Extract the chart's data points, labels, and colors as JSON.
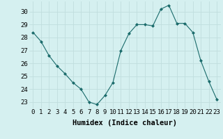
{
  "x": [
    0,
    1,
    2,
    3,
    4,
    5,
    6,
    7,
    8,
    9,
    10,
    11,
    12,
    13,
    14,
    15,
    16,
    17,
    18,
    19,
    20,
    21,
    22,
    23
  ],
  "y": [
    28.4,
    27.7,
    26.6,
    25.8,
    25.2,
    24.5,
    24.0,
    23.0,
    22.8,
    23.5,
    24.5,
    27.0,
    28.3,
    29.0,
    29.0,
    28.9,
    30.2,
    30.5,
    29.1,
    29.1,
    28.4,
    26.2,
    24.6,
    23.2
  ],
  "line_color": "#1a6b6b",
  "marker": "D",
  "marker_size": 2.0,
  "bg_color": "#d5f0f0",
  "grid_color": "#c0dede",
  "xlabel": "Humidex (Indice chaleur)",
  "ylim": [
    22.5,
    30.8
  ],
  "xlim": [
    -0.5,
    23.5
  ],
  "yticks": [
    23,
    24,
    25,
    26,
    27,
    28,
    29,
    30
  ],
  "xticks": [
    0,
    1,
    2,
    3,
    4,
    5,
    6,
    7,
    8,
    9,
    10,
    11,
    12,
    13,
    14,
    15,
    16,
    17,
    18,
    19,
    20,
    21,
    22,
    23
  ],
  "xlabel_fontsize": 7.5,
  "tick_fontsize": 6.5
}
